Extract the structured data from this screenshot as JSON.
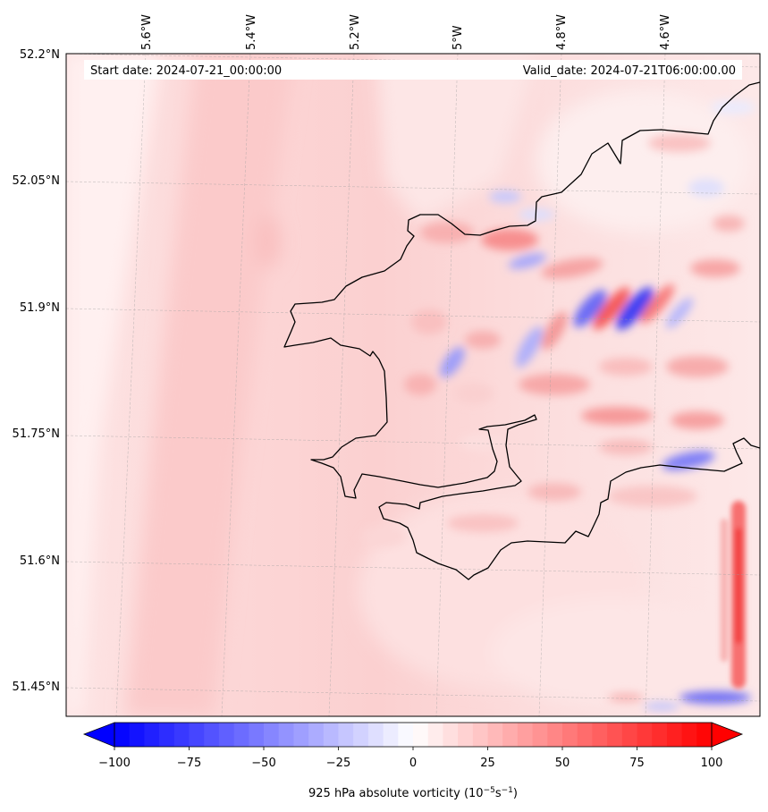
{
  "map": {
    "start_date_label": "Start date: 2024-07-21_00:00:00",
    "valid_date_label": "Valid_date: 2024-07-21T06:00:00.00",
    "lon_ticks": [
      "5.6°W",
      "5.4°W",
      "5.2°W",
      "5°W",
      "4.8°W",
      "4.6°W"
    ],
    "lat_ticks": [
      "52.2°N",
      "52.05°N",
      "51.9°N",
      "51.75°N",
      "51.6°N",
      "51.45°N"
    ]
  },
  "colorbar": {
    "ticks": [
      "−100",
      "−75",
      "−50",
      "−25",
      "0",
      "25",
      "50",
      "75",
      "100"
    ],
    "label": "925 hPa absolute vorticity",
    "units_prefix": "(10",
    "units_exp1": "−5",
    "units_mid": "s",
    "units_exp2": "−1",
    "units_suffix": ")",
    "min_color": "#0000ff",
    "max_color": "#ff0000"
  }
}
